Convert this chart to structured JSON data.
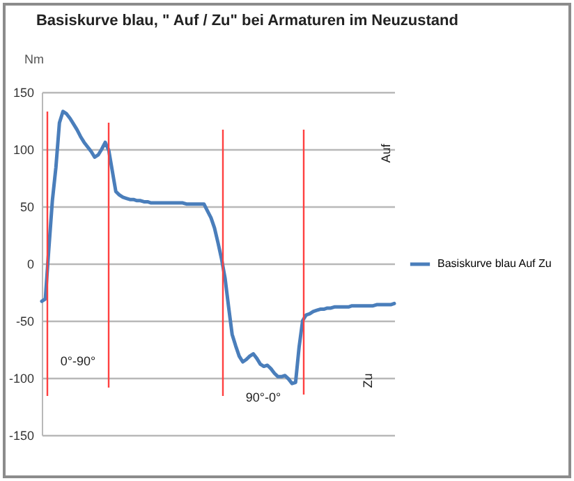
{
  "chart_data": {
    "type": "line",
    "title": "Basiskurve blau, \" Auf / Zu\"  bei Armaturen im Neuzustand",
    "ylabel": "Nm",
    "categories": [
      null,
      null,
      null,
      null,
      null,
      null,
      null,
      null,
      null,
      null,
      null,
      null,
      null,
      null,
      null,
      null,
      null,
      null,
      null,
      null,
      null,
      null,
      null,
      null,
      null,
      null,
      null,
      null,
      null,
      null,
      null,
      null,
      null,
      null,
      null,
      null,
      null,
      null,
      null,
      null,
      null,
      null,
      null,
      null,
      null,
      null,
      null,
      null,
      null,
      null,
      null,
      null,
      null,
      null,
      null,
      null,
      null,
      null,
      null,
      null,
      null,
      null,
      null,
      null,
      null,
      null,
      null,
      null,
      null,
      null,
      null,
      null,
      null,
      null,
      null,
      null,
      null,
      null,
      null,
      null,
      null,
      null,
      null,
      null,
      null,
      null,
      null,
      null,
      null,
      null,
      null,
      null,
      null,
      null,
      null,
      null,
      null,
      null,
      null,
      null,
      null
    ],
    "series": [
      {
        "name": "Basiskurve blau  Auf  Zu",
        "color": "#4a7ebb",
        "values": [
          -33,
          -31,
          13,
          55,
          84,
          123,
          133,
          131,
          127,
          122,
          117,
          111,
          106,
          102,
          98,
          93,
          95,
          100,
          106,
          99,
          81,
          63,
          60,
          58,
          57,
          56,
          56,
          55,
          55,
          54,
          54,
          53,
          53,
          53,
          53,
          53,
          53,
          53,
          53,
          53,
          53,
          52,
          52,
          52,
          52,
          52,
          52,
          46,
          40,
          31,
          18,
          4,
          -13,
          -38,
          -62,
          -72,
          -81,
          -86,
          -84,
          -81,
          -79,
          -83,
          -88,
          -90,
          -89,
          -92,
          -96,
          -99,
          -99,
          -98,
          -101,
          -105,
          -104,
          -73,
          -50,
          -45,
          -44,
          -42,
          -41,
          -40,
          -40,
          -39,
          -39,
          -38,
          -38,
          -38,
          -38,
          -38,
          -37,
          -37,
          -37,
          -37,
          -37,
          -37,
          -37,
          -36,
          -36,
          -36,
          -36,
          -36,
          -35
        ]
      }
    ],
    "ylim": [
      -150,
      150
    ],
    "yticks": [
      -150,
      -100,
      -50,
      0,
      50,
      100,
      150
    ],
    "tick_labels": "y",
    "grid": "y",
    "legend": "right",
    "line_style": "solid",
    "marker": "none",
    "annotations": [
      "Auf",
      "Zu",
      "0°-90°",
      "90°-0°"
    ]
  }
}
